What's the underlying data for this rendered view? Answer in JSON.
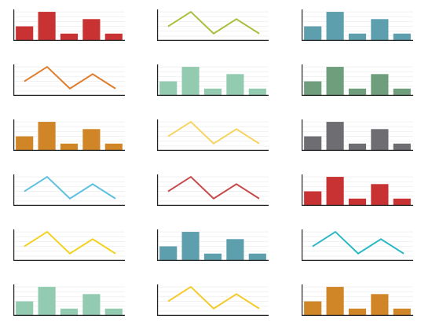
{
  "chart_data": [
    {
      "type": "bar",
      "color": "#c83232",
      "values": [
        3,
        6,
        1.5,
        4.5,
        1.5
      ],
      "ylim": [
        0,
        6.5
      ],
      "grid": true
    },
    {
      "type": "line",
      "color": "#a8bf3c",
      "values": [
        3,
        6,
        1.5,
        4.5,
        1.5
      ],
      "ylim": [
        0,
        6.5
      ],
      "grid": true
    },
    {
      "type": "bar",
      "color": "#5e9fae",
      "values": [
        3,
        6,
        1.5,
        4.5,
        1.5
      ],
      "ylim": [
        0,
        6.5
      ],
      "grid": true
    },
    {
      "type": "line",
      "color": "#e07b2a",
      "values": [
        3,
        6,
        1.5,
        4.5,
        1.5
      ],
      "ylim": [
        0,
        6.5
      ],
      "grid": true
    },
    {
      "type": "bar",
      "color": "#93cbb1",
      "values": [
        3,
        6,
        1.5,
        4.5,
        1.5
      ],
      "ylim": [
        0,
        6.5
      ],
      "grid": true
    },
    {
      "type": "bar",
      "color": "#6f9e7d",
      "values": [
        3,
        6,
        1.5,
        4.5,
        1.5
      ],
      "ylim": [
        0,
        6.5
      ],
      "grid": true
    },
    {
      "type": "bar",
      "color": "#d08626",
      "values": [
        3,
        6,
        1.5,
        4.5,
        1.5
      ],
      "ylim": [
        0,
        6.5
      ],
      "grid": true
    },
    {
      "type": "line",
      "color": "#f6d460",
      "values": [
        3,
        6,
        1.5,
        4.5,
        1.5
      ],
      "ylim": [
        0,
        6.5
      ],
      "grid": true
    },
    {
      "type": "bar",
      "color": "#6e6e72",
      "values": [
        3,
        6,
        1.5,
        4.5,
        1.5
      ],
      "ylim": [
        0,
        6.5
      ],
      "grid": true
    },
    {
      "type": "line",
      "color": "#5cc0de",
      "values": [
        3,
        6,
        1.5,
        4.5,
        1.5
      ],
      "ylim": [
        0,
        6.5
      ],
      "grid": true
    },
    {
      "type": "line",
      "color": "#c64a4a",
      "values": [
        3,
        6,
        1.5,
        4.5,
        1.5
      ],
      "ylim": [
        0,
        6.5
      ],
      "grid": true
    },
    {
      "type": "bar",
      "color": "#c83232",
      "values": [
        3,
        6,
        1.5,
        4.5,
        1.5
      ],
      "ylim": [
        0,
        6.5
      ],
      "grid": true
    },
    {
      "type": "line",
      "color": "#f2d21f",
      "values": [
        3,
        6,
        1.5,
        4.5,
        1.5
      ],
      "ylim": [
        0,
        6.5
      ],
      "grid": true
    },
    {
      "type": "bar",
      "color": "#5e9fae",
      "values": [
        3,
        6,
        1.5,
        4.5,
        1.5
      ],
      "ylim": [
        0,
        6.5
      ],
      "grid": true
    },
    {
      "type": "line",
      "color": "#2ab8c4",
      "values": [
        3,
        6,
        1.5,
        4.5,
        1.5
      ],
      "ylim": [
        0,
        6.5
      ],
      "grid": true
    },
    {
      "type": "bar",
      "color": "#93cbb1",
      "values": [
        3,
        6,
        1.5,
        4.5,
        1.5
      ],
      "ylim": [
        0,
        6.5
      ],
      "grid": true
    },
    {
      "type": "line",
      "color": "#f2ca2a",
      "values": [
        3,
        6,
        1.5,
        4.5,
        1.5
      ],
      "ylim": [
        0,
        6.5
      ],
      "grid": true
    },
    {
      "type": "bar",
      "color": "#d08626",
      "values": [
        3,
        6,
        1.5,
        4.5,
        1.5
      ],
      "ylim": [
        0,
        6.5
      ],
      "grid": true
    }
  ]
}
